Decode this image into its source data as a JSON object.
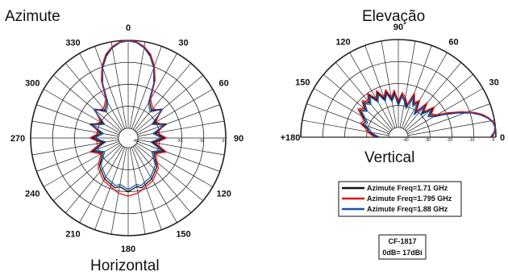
{
  "chart_data": [
    {
      "type": "polar",
      "title": "Azimute",
      "subtitle": "Horizontal",
      "angle_labels": [
        "0",
        "30",
        "60",
        "90",
        "120",
        "150",
        "180",
        "210",
        "240",
        "270",
        "300",
        "330"
      ],
      "radial_tick_labels": [
        "0",
        "-10",
        "-20",
        "-30",
        "-40"
      ],
      "rlim_db": [
        -40,
        0
      ],
      "series": [
        {
          "name": "Azimute Freq=1.71 GHz",
          "color": "#111111",
          "angles_deg": [
            0,
            5,
            10,
            15,
            20,
            25,
            30,
            40,
            50,
            60,
            70,
            80,
            90,
            100,
            110,
            120,
            135,
            150,
            165,
            170,
            180,
            190,
            195,
            210,
            225,
            240,
            250,
            260,
            270,
            280,
            290,
            300,
            310,
            320,
            330,
            335,
            340,
            345,
            350,
            355
          ],
          "values_db": [
            0,
            -0.6,
            -2.5,
            -5.5,
            -10,
            -16,
            -25,
            -28,
            -24,
            -31,
            -26,
            -32,
            -28,
            -33,
            -27,
            -31,
            -26,
            -23,
            -21,
            -22,
            -20,
            -22,
            -21,
            -23,
            -26,
            -31,
            -27,
            -33,
            -28,
            -32,
            -26,
            -31,
            -24,
            -28,
            -25,
            -16,
            -10,
            -5.5,
            -2.5,
            -0.6
          ]
        },
        {
          "name": "Azimute Freq=1.795 GHz",
          "color": "#e0141b",
          "angles_deg": [
            0,
            5,
            10,
            15,
            20,
            25,
            30,
            40,
            50,
            60,
            70,
            80,
            90,
            100,
            110,
            120,
            135,
            150,
            165,
            170,
            180,
            190,
            195,
            210,
            225,
            240,
            250,
            260,
            270,
            280,
            290,
            300,
            310,
            320,
            330,
            335,
            340,
            345,
            350,
            355
          ],
          "values_db": [
            0,
            -0.5,
            -2.2,
            -5,
            -9.5,
            -15.5,
            -24,
            -27,
            -25,
            -30,
            -27,
            -31,
            -27,
            -32,
            -26,
            -30,
            -25,
            -22,
            -20,
            -19,
            -18,
            -19,
            -20,
            -22,
            -25,
            -30,
            -26,
            -32,
            -27,
            -31,
            -27,
            -30,
            -25,
            -27,
            -24,
            -15.5,
            -9.5,
            -5,
            -2.2,
            -0.5
          ]
        },
        {
          "name": "Azimute Freq=1.88 GHz",
          "color": "#1f4fa8",
          "angles_deg": [
            0,
            5,
            10,
            15,
            20,
            25,
            30,
            40,
            50,
            60,
            70,
            80,
            90,
            100,
            110,
            120,
            135,
            150,
            165,
            170,
            180,
            190,
            195,
            210,
            225,
            240,
            250,
            260,
            270,
            280,
            290,
            300,
            310,
            320,
            330,
            335,
            340,
            345,
            350,
            355
          ],
          "values_db": [
            -0.3,
            -0.9,
            -2.8,
            -6,
            -10.5,
            -17,
            -26,
            -29,
            -24,
            -32,
            -27,
            -33,
            -29,
            -34,
            -28,
            -32,
            -27,
            -24,
            -22,
            -23,
            -21,
            -23,
            -22,
            -24,
            -27,
            -32,
            -28,
            -34,
            -29,
            -33,
            -27,
            -32,
            -24,
            -29,
            -26,
            -17,
            -10.5,
            -6,
            -2.8,
            -0.9
          ]
        }
      ]
    },
    {
      "type": "polar",
      "title": "Elevação",
      "subtitle": "Vertical",
      "angle_labels": [
        "+180",
        "150",
        "120",
        "90",
        "60",
        "30",
        "0"
      ],
      "radial_tick_labels": [
        "0",
        "-10",
        "-20",
        "-30",
        "-40"
      ],
      "rlim_db": [
        -40,
        0
      ],
      "series": [
        {
          "name": "Azimute Freq=1.71 GHz",
          "color": "#111111",
          "angles_deg": [
            0,
            3,
            6,
            9,
            12,
            15,
            18,
            22,
            26,
            30,
            35,
            40,
            45,
            50,
            55,
            60,
            65,
            70,
            75,
            80,
            85,
            90,
            95,
            100,
            105,
            110,
            115,
            120,
            125,
            130,
            135,
            140,
            145,
            150,
            155,
            160,
            165,
            170,
            175,
            180
          ],
          "values_db": [
            -2,
            -0.6,
            0,
            -0.8,
            -2.5,
            -5,
            -8.5,
            -14,
            -20,
            -25,
            -27,
            -24,
            -29,
            -25,
            -31,
            -26,
            -28,
            -24,
            -30,
            -27,
            -25,
            -29,
            -24,
            -27,
            -23,
            -26,
            -22,
            -25,
            -21,
            -24,
            -22,
            -25,
            -23,
            -26,
            -28,
            -27,
            -30,
            -31,
            -33,
            -35
          ]
        },
        {
          "name": "Azimute Freq=1.795 GHz",
          "color": "#e0141b",
          "angles_deg": [
            0,
            3,
            6,
            9,
            12,
            15,
            18,
            22,
            26,
            30,
            35,
            40,
            45,
            50,
            55,
            60,
            65,
            70,
            75,
            80,
            85,
            90,
            95,
            100,
            105,
            110,
            115,
            120,
            125,
            130,
            135,
            140,
            145,
            150,
            155,
            160,
            165,
            170,
            175,
            180
          ],
          "values_db": [
            -1.5,
            -0.4,
            0,
            -0.6,
            -2.2,
            -4.6,
            -8,
            -13.5,
            -19,
            -24,
            -26,
            -23,
            -28,
            -24,
            -30,
            -25,
            -27,
            -23,
            -29,
            -26,
            -24,
            -28,
            -23,
            -26,
            -22,
            -25,
            -21,
            -24,
            -20,
            -23,
            -21,
            -24,
            -22,
            -25,
            -27,
            -26,
            -29,
            -30,
            -32,
            -34
          ]
        },
        {
          "name": "Azimute Freq=1.88 GHz",
          "color": "#1f4fa8",
          "angles_deg": [
            0,
            3,
            6,
            9,
            12,
            15,
            18,
            22,
            26,
            30,
            35,
            40,
            45,
            50,
            55,
            60,
            65,
            70,
            75,
            80,
            85,
            90,
            95,
            100,
            105,
            110,
            115,
            120,
            125,
            130,
            135,
            140,
            145,
            150,
            155,
            160,
            165,
            170,
            175,
            180
          ],
          "values_db": [
            -2.5,
            -0.8,
            -0.2,
            -1,
            -2.8,
            -5.5,
            -9,
            -15,
            -21,
            -26,
            -28,
            -25,
            -30,
            -26,
            -32,
            -27,
            -29,
            -25,
            -31,
            -28,
            -26,
            -30,
            -25,
            -28,
            -24,
            -27,
            -23,
            -26,
            -22,
            -25,
            -23,
            -26,
            -24,
            -27,
            -29,
            -28,
            -31,
            -32,
            -34,
            -36
          ]
        }
      ]
    }
  ],
  "legend": {
    "items": [
      {
        "label": "Azimute Freq=1.71 GHz",
        "color": "#111111"
      },
      {
        "label": "Azimute Freq=1.795 GHz",
        "color": "#e0141b"
      },
      {
        "label": "Azimute Freq=1.88 GHz",
        "color": "#1f4fa8"
      }
    ]
  },
  "info_box": {
    "model": "CF-1817",
    "gain": "0dB= 17dBi"
  }
}
